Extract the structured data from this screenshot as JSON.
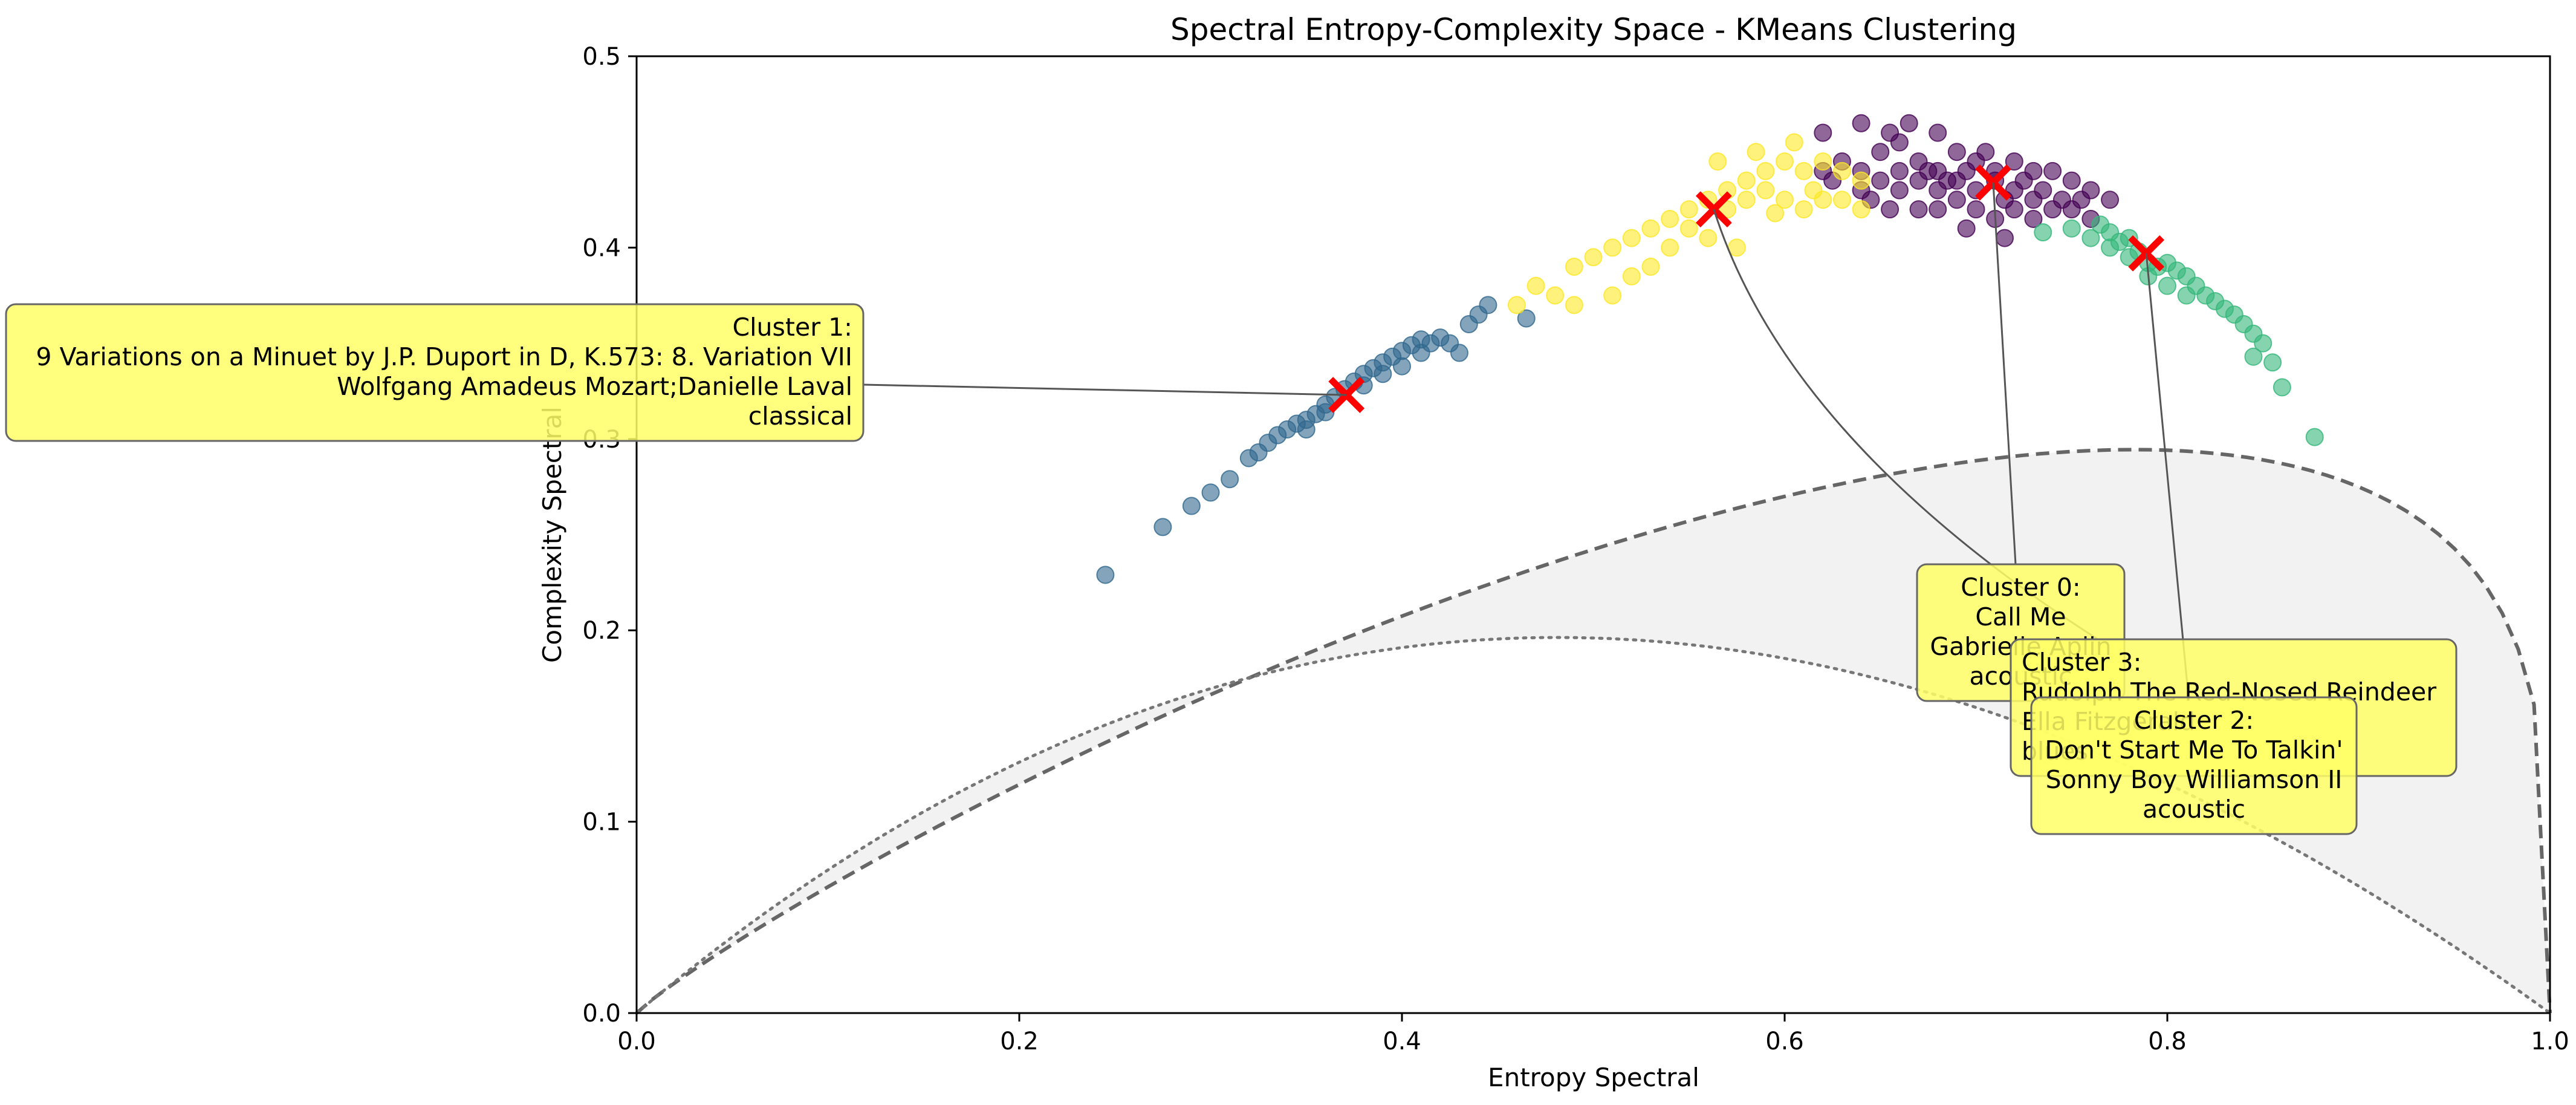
{
  "chart_data": {
    "type": "scatter",
    "title": "Spectral Entropy-Complexity Space - KMeans Clustering",
    "xlabel": "Entropy Spectral",
    "ylabel": "Complexity Spectral",
    "xlim": [
      0.0,
      1.0
    ],
    "ylim": [
      0.0,
      0.5
    ],
    "xticks": [
      "0.0",
      "0.2",
      "0.4",
      "0.6",
      "0.8",
      "1.0"
    ],
    "yticks": [
      "0.0",
      "0.1",
      "0.2",
      "0.3",
      "0.4",
      "0.5"
    ],
    "grid": false,
    "colors": {
      "cluster_0": "#440154",
      "cluster_1": "#31688e",
      "cluster_2": "#35b779",
      "cluster_3": "#fde725",
      "centroid": "#ff0000",
      "region": "#f2f2f2",
      "upper_bound": "#666666",
      "lower_bound": "#777777",
      "annotation_box": "#ffff66"
    },
    "series": [
      {
        "cluster": 0,
        "points": [
          [
            0.62,
            0.46
          ],
          [
            0.64,
            0.465
          ],
          [
            0.655,
            0.46
          ],
          [
            0.66,
            0.455
          ],
          [
            0.665,
            0.465
          ],
          [
            0.68,
            0.46
          ],
          [
            0.63,
            0.445
          ],
          [
            0.64,
            0.44
          ],
          [
            0.65,
            0.45
          ],
          [
            0.66,
            0.44
          ],
          [
            0.67,
            0.445
          ],
          [
            0.68,
            0.44
          ],
          [
            0.69,
            0.45
          ],
          [
            0.7,
            0.445
          ],
          [
            0.71,
            0.44
          ],
          [
            0.72,
            0.445
          ],
          [
            0.73,
            0.44
          ],
          [
            0.74,
            0.44
          ],
          [
            0.75,
            0.435
          ],
          [
            0.76,
            0.43
          ],
          [
            0.77,
            0.425
          ],
          [
            0.64,
            0.43
          ],
          [
            0.65,
            0.435
          ],
          [
            0.66,
            0.43
          ],
          [
            0.67,
            0.435
          ],
          [
            0.68,
            0.43
          ],
          [
            0.69,
            0.435
          ],
          [
            0.7,
            0.43
          ],
          [
            0.71,
            0.435
          ],
          [
            0.72,
            0.43
          ],
          [
            0.73,
            0.425
          ],
          [
            0.74,
            0.42
          ],
          [
            0.75,
            0.42
          ],
          [
            0.76,
            0.415
          ],
          [
            0.67,
            0.42
          ],
          [
            0.68,
            0.42
          ],
          [
            0.69,
            0.425
          ],
          [
            0.7,
            0.42
          ],
          [
            0.71,
            0.415
          ],
          [
            0.72,
            0.42
          ],
          [
            0.73,
            0.415
          ],
          [
            0.705,
            0.45
          ],
          [
            0.695,
            0.44
          ],
          [
            0.685,
            0.435
          ],
          [
            0.675,
            0.44
          ],
          [
            0.715,
            0.425
          ],
          [
            0.725,
            0.435
          ],
          [
            0.735,
            0.43
          ],
          [
            0.745,
            0.425
          ],
          [
            0.755,
            0.425
          ],
          [
            0.62,
            0.44
          ],
          [
            0.625,
            0.435
          ],
          [
            0.645,
            0.425
          ],
          [
            0.655,
            0.42
          ],
          [
            0.715,
            0.405
          ],
          [
            0.695,
            0.41
          ]
        ]
      },
      {
        "cluster": 1,
        "points": [
          [
            0.245,
            0.229
          ],
          [
            0.275,
            0.254
          ],
          [
            0.29,
            0.265
          ],
          [
            0.3,
            0.272
          ],
          [
            0.31,
            0.279
          ],
          [
            0.32,
            0.29
          ],
          [
            0.325,
            0.293
          ],
          [
            0.33,
            0.298
          ],
          [
            0.335,
            0.302
          ],
          [
            0.34,
            0.305
          ],
          [
            0.345,
            0.308
          ],
          [
            0.35,
            0.31
          ],
          [
            0.355,
            0.313
          ],
          [
            0.36,
            0.318
          ],
          [
            0.365,
            0.322
          ],
          [
            0.37,
            0.326
          ],
          [
            0.375,
            0.33
          ],
          [
            0.38,
            0.334
          ],
          [
            0.385,
            0.337
          ],
          [
            0.39,
            0.34
          ],
          [
            0.395,
            0.343
          ],
          [
            0.4,
            0.346
          ],
          [
            0.405,
            0.349
          ],
          [
            0.41,
            0.352
          ],
          [
            0.415,
            0.35
          ],
          [
            0.42,
            0.353
          ],
          [
            0.425,
            0.35
          ],
          [
            0.43,
            0.345
          ],
          [
            0.435,
            0.36
          ],
          [
            0.44,
            0.365
          ],
          [
            0.445,
            0.37
          ],
          [
            0.465,
            0.363
          ],
          [
            0.39,
            0.334
          ],
          [
            0.4,
            0.338
          ],
          [
            0.38,
            0.328
          ],
          [
            0.36,
            0.314
          ],
          [
            0.41,
            0.345
          ],
          [
            0.35,
            0.305
          ]
        ]
      },
      {
        "cluster": 2,
        "points": [
          [
            0.735,
            0.408
          ],
          [
            0.75,
            0.41
          ],
          [
            0.76,
            0.405
          ],
          [
            0.765,
            0.412
          ],
          [
            0.77,
            0.408
          ],
          [
            0.775,
            0.403
          ],
          [
            0.78,
            0.405
          ],
          [
            0.785,
            0.398
          ],
          [
            0.79,
            0.392
          ],
          [
            0.795,
            0.39
          ],
          [
            0.8,
            0.392
          ],
          [
            0.805,
            0.388
          ],
          [
            0.81,
            0.385
          ],
          [
            0.815,
            0.38
          ],
          [
            0.82,
            0.375
          ],
          [
            0.825,
            0.372
          ],
          [
            0.83,
            0.368
          ],
          [
            0.835,
            0.365
          ],
          [
            0.84,
            0.36
          ],
          [
            0.845,
            0.355
          ],
          [
            0.85,
            0.35
          ],
          [
            0.845,
            0.343
          ],
          [
            0.855,
            0.34
          ],
          [
            0.86,
            0.327
          ],
          [
            0.877,
            0.301
          ],
          [
            0.8,
            0.38
          ],
          [
            0.79,
            0.385
          ],
          [
            0.81,
            0.375
          ],
          [
            0.78,
            0.395
          ],
          [
            0.77,
            0.4
          ]
        ]
      },
      {
        "cluster": 3,
        "points": [
          [
            0.46,
            0.37
          ],
          [
            0.48,
            0.375
          ],
          [
            0.47,
            0.38
          ],
          [
            0.49,
            0.39
          ],
          [
            0.5,
            0.395
          ],
          [
            0.51,
            0.4
          ],
          [
            0.52,
            0.405
          ],
          [
            0.53,
            0.41
          ],
          [
            0.54,
            0.415
          ],
          [
            0.55,
            0.42
          ],
          [
            0.56,
            0.425
          ],
          [
            0.57,
            0.43
          ],
          [
            0.58,
            0.435
          ],
          [
            0.59,
            0.44
          ],
          [
            0.6,
            0.445
          ],
          [
            0.61,
            0.44
          ],
          [
            0.62,
            0.445
          ],
          [
            0.63,
            0.44
          ],
          [
            0.64,
            0.435
          ],
          [
            0.57,
            0.42
          ],
          [
            0.58,
            0.425
          ],
          [
            0.59,
            0.43
          ],
          [
            0.6,
            0.425
          ],
          [
            0.61,
            0.42
          ],
          [
            0.62,
            0.425
          ],
          [
            0.55,
            0.41
          ],
          [
            0.56,
            0.405
          ],
          [
            0.575,
            0.4
          ],
          [
            0.54,
            0.4
          ],
          [
            0.53,
            0.39
          ],
          [
            0.52,
            0.385
          ],
          [
            0.51,
            0.375
          ],
          [
            0.49,
            0.37
          ],
          [
            0.565,
            0.445
          ],
          [
            0.585,
            0.45
          ],
          [
            0.605,
            0.455
          ],
          [
            0.595,
            0.418
          ],
          [
            0.615,
            0.43
          ],
          [
            0.63,
            0.425
          ],
          [
            0.64,
            0.42
          ]
        ]
      }
    ],
    "centroids": [
      {
        "cluster": 0,
        "x": 0.709,
        "y": 0.434
      },
      {
        "cluster": 1,
        "x": 0.371,
        "y": 0.323
      },
      {
        "cluster": 2,
        "x": 0.789,
        "y": 0.397
      },
      {
        "cluster": 3,
        "x": 0.563,
        "y": 0.42
      }
    ],
    "annotations": [
      {
        "cluster": 1,
        "lines": [
          "Cluster 1:",
          "9 Variations on a Minuet by J.P. Duport in D, K.573: 8. Variation VII",
          "Wolfgang Amadeus Mozart;Danielle Laval",
          "classical"
        ],
        "align": "right"
      },
      {
        "cluster": 0,
        "lines": [
          "Cluster 0:",
          "Call Me",
          "Gabrielle Aplin",
          "acoustic"
        ],
        "align": "center"
      },
      {
        "cluster": 3,
        "lines": [
          "Cluster 3:",
          "Rudolph The Red-Nosed Reindeer",
          "Ella Fitzgerald",
          "blues"
        ],
        "align": "left"
      },
      {
        "cluster": 2,
        "lines": [
          "Cluster 2:",
          "Don't Start Me To Talkin'",
          "Sonny Boy Williamson II",
          "acoustic"
        ],
        "align": "center"
      }
    ]
  }
}
